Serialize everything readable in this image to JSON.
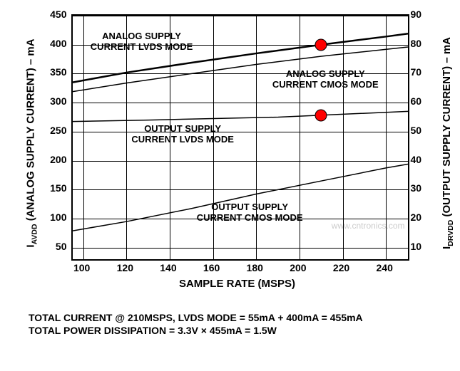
{
  "chart": {
    "type": "line",
    "background_color": "#ffffff",
    "grid_color": "#000000",
    "border_width": 2,
    "font_family": "Arial",
    "x": {
      "label": "SAMPLE RATE (MSPS)",
      "min": 95,
      "max": 250,
      "ticks": [
        100,
        120,
        140,
        160,
        180,
        200,
        220,
        240
      ],
      "label_fontsize": 15
    },
    "y_left": {
      "label": "I_AVDD (ANALOG SUPPLY CURRENT) – mA",
      "min": 30,
      "max": 450,
      "ticks": [
        50,
        100,
        150,
        200,
        250,
        300,
        350,
        400,
        450
      ],
      "label_fontsize": 15
    },
    "y_right": {
      "label": "I_DRVDD (OUTPUT SUPPLY CURRENT) – mA",
      "min": 6,
      "max": 90,
      "ticks": [
        10,
        20,
        30,
        40,
        50,
        60,
        70,
        80,
        90
      ],
      "label_fontsize": 15
    },
    "series": [
      {
        "name": "analog-lvds",
        "axis": "left",
        "label": "ANALOG SUPPLY\nCURRENT LVDS MODE",
        "label_pos": {
          "x": 127,
          "y": 405
        },
        "color": "#000000",
        "line_width": 2.5,
        "points": [
          [
            95,
            335
          ],
          [
            120,
            352
          ],
          [
            150,
            369
          ],
          [
            180,
            385
          ],
          [
            210,
            400
          ],
          [
            240,
            414
          ],
          [
            250,
            419
          ]
        ]
      },
      {
        "name": "analog-cmos",
        "axis": "left",
        "label": "ANALOG SUPPLY\nCURRENT CMOS MODE",
        "label_pos": {
          "x": 212,
          "y": 340
        },
        "color": "#000000",
        "line_width": 1.5,
        "points": [
          [
            95,
            319
          ],
          [
            120,
            334
          ],
          [
            150,
            350
          ],
          [
            180,
            366
          ],
          [
            210,
            380
          ],
          [
            240,
            392
          ],
          [
            250,
            396
          ]
        ]
      },
      {
        "name": "output-lvds",
        "axis": "right",
        "label": "OUTPUT SUPPLY\nCURRENT LVDS MODE",
        "label_pos": {
          "x": 146,
          "y": 245
        },
        "color": "#000000",
        "line_width": 1.5,
        "points": [
          [
            95,
            53.5
          ],
          [
            130,
            54
          ],
          [
            160,
            54.5
          ],
          [
            190,
            55
          ],
          [
            220,
            56
          ],
          [
            250,
            57
          ]
        ]
      },
      {
        "name": "output-cmos",
        "axis": "right",
        "label": "OUTPUT SUPPLY\nCURRENT CMOS MODE",
        "label_pos": {
          "x": 177,
          "y": 110
        },
        "color": "#000000",
        "line_width": 1.5,
        "points": [
          [
            95,
            15.8
          ],
          [
            120,
            19
          ],
          [
            150,
            23.5
          ],
          [
            180,
            28.5
          ],
          [
            210,
            33
          ],
          [
            240,
            37.5
          ],
          [
            250,
            38.8
          ]
        ]
      }
    ],
    "markers": [
      {
        "name": "marker-analog-lvds",
        "x": 210,
        "y_left": 400,
        "color": "#ff0000",
        "size": 15
      },
      {
        "name": "marker-output-lvds",
        "x": 210,
        "y_right": 55.5,
        "color": "#ff0000",
        "size": 15
      }
    ],
    "watermark": "www.cntronics.com"
  },
  "footer": {
    "line1": "TOTAL CURRENT @ 210MSPS, LVDS MODE = 55mA + 400mA = 455mA",
    "line2": "TOTAL POWER DISSIPATION = 3.3V × 455mA = 1.5W"
  }
}
